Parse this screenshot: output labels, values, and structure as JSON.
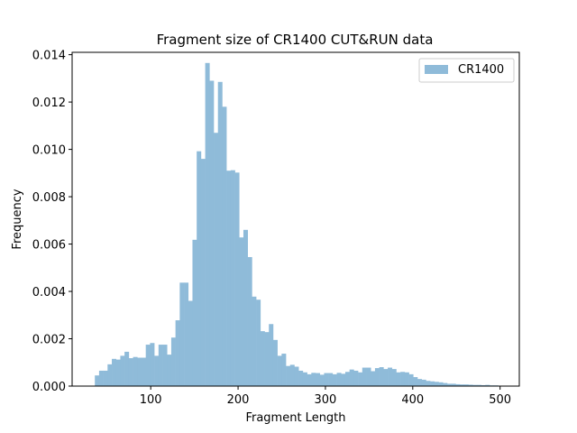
{
  "chart_data": {
    "type": "bar",
    "title": "Fragment size of CR1400 CUT&RUN data",
    "xlabel": "Fragment Length",
    "ylabel": "Frequency",
    "xlim": [
      10,
      522
    ],
    "ylim": [
      0,
      0.0141
    ],
    "xticks": [
      100,
      200,
      300,
      400,
      500
    ],
    "xtick_labels": [
      "100",
      "200",
      "300",
      "400",
      "500"
    ],
    "yticks": [
      0,
      0.002,
      0.004,
      0.006,
      0.008,
      0.01,
      0.012,
      0.014
    ],
    "ytick_labels": [
      "0.000",
      "0.002",
      "0.004",
      "0.006",
      "0.008",
      "0.010",
      "0.012",
      "0.014"
    ],
    "legend": {
      "position": "top-right"
    },
    "bin_start": 36,
    "bin_width": 4.86,
    "series": [
      {
        "name": "CR1400",
        "color": "#8fbbd9",
        "values": [
          0.00045,
          0.00065,
          0.00065,
          0.00092,
          0.00115,
          0.00112,
          0.00128,
          0.00145,
          0.00118,
          0.00123,
          0.0012,
          0.0012,
          0.00175,
          0.00182,
          0.00128,
          0.00175,
          0.00175,
          0.00133,
          0.00205,
          0.00278,
          0.00437,
          0.00437,
          0.0036,
          0.00618,
          0.00992,
          0.0096,
          0.01365,
          0.0129,
          0.0107,
          0.01285,
          0.0118,
          0.0091,
          0.00912,
          0.00902,
          0.00628,
          0.0066,
          0.00545,
          0.00378,
          0.00365,
          0.00232,
          0.00228,
          0.00262,
          0.00195,
          0.00128,
          0.00137,
          0.00085,
          0.0009,
          0.00082,
          0.00065,
          0.00058,
          0.0005,
          0.00056,
          0.00055,
          0.00048,
          0.00055,
          0.00055,
          0.0005,
          0.00056,
          0.00052,
          0.0006,
          0.0007,
          0.00065,
          0.00058,
          0.00078,
          0.00078,
          0.00063,
          0.00076,
          0.0008,
          0.00072,
          0.00078,
          0.00072,
          0.00058,
          0.0006,
          0.00058,
          0.0005,
          0.00038,
          0.0003,
          0.00027,
          0.00022,
          0.0002,
          0.00018,
          0.00016,
          0.00013,
          0.0001,
          0.0001,
          8e-05,
          7e-05,
          7e-05,
          6e-05,
          5e-05,
          5e-05,
          4e-05,
          5e-05,
          3e-05,
          3e-05
        ]
      }
    ]
  }
}
